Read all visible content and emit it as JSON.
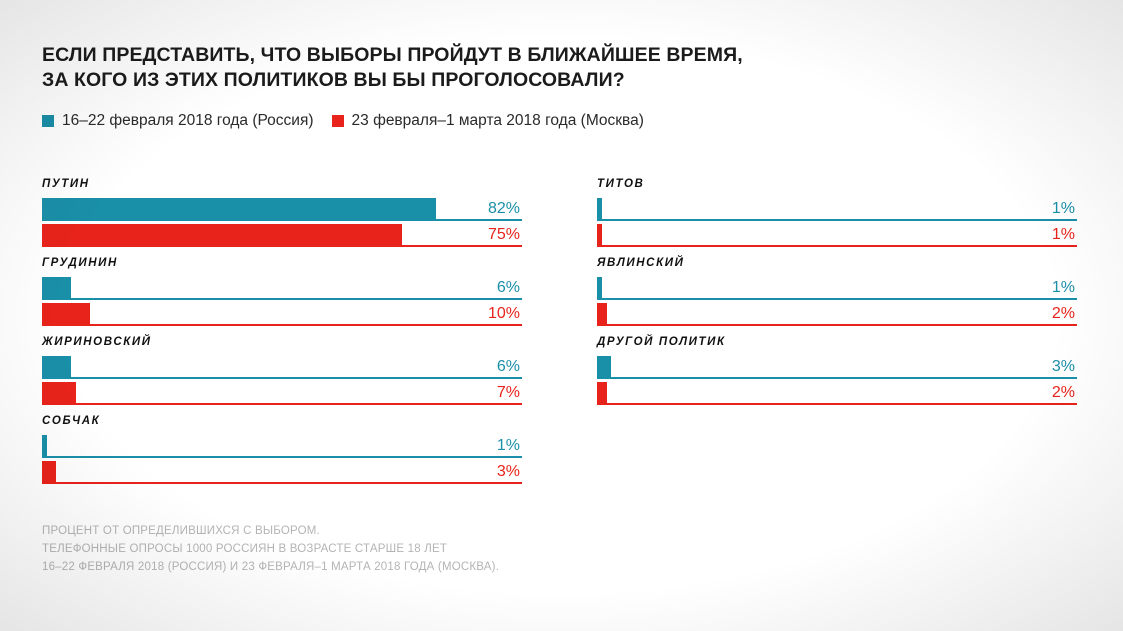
{
  "title": {
    "line1": "ЕСЛИ ПРЕДСТАВИТЬ, ЧТО ВЫБОРЫ ПРОЙДУТ В БЛИЖАЙШЕЕ ВРЕМЯ,",
    "line2": "ЗА КОГО ИЗ ЭТИХ ПОЛИТИКОВ ВЫ БЫ ПРОГОЛОСОВАЛИ?"
  },
  "legend": {
    "russia": "16–22 февраля 2018 года (Россия)",
    "moscow": "23 февраля–1 марта 2018 года (Москва)"
  },
  "colors": {
    "russia": "#1a8fa8",
    "moscow": "#e8231b"
  },
  "footnote": {
    "line1": "ПРОЦЕНТ ОТ ОПРЕДЕЛИВШИХСЯ С ВЫБОРОМ.",
    "line2": "ТЕЛЕФОННЫЕ ОПРОСЫ 1000 РОССИЯН В ВОЗРАСТЕ СТАРШЕ 18 ЛЕТ",
    "line3": "16–22 ФЕВРАЛЯ 2018 (РОССИЯ) И 23 ФЕВРАЛЯ–1 МАРТА 2018 ГОДА (МОСКВА)."
  },
  "chart_data": {
    "type": "bar",
    "orientation": "horizontal",
    "title": "ЕСЛИ ПРЕДСТАВИТЬ, ЧТО ВЫБОРЫ ПРОЙДУТ В БЛИЖАЙШЕЕ ВРЕМЯ, ЗА КОГО ИЗ ЭТИХ ПОЛИТИКОВ ВЫ БЫ ПРОГОЛОСОВАЛИ?",
    "xlim": [
      0,
      100
    ],
    "legend_position": "top-left",
    "grid": false,
    "categories": [
      "ПУТИН",
      "ГРУДИНИН",
      "ЖИРИНОВСКИЙ",
      "СОБЧАК",
      "ТИТОВ",
      "ЯВЛИНСКИЙ",
      "ДРУГОЙ ПОЛИТИК"
    ],
    "columns": [
      [
        "ПУТИН",
        "ГРУДИНИН",
        "ЖИРИНОВСКИЙ",
        "СОБЧАК"
      ],
      [
        "ТИТОВ",
        "ЯВЛИНСКИЙ",
        "ДРУГОЙ ПОЛИТИК"
      ]
    ],
    "series": [
      {
        "name": "16–22 февраля 2018 года (Россия)",
        "values": [
          82,
          6,
          6,
          1,
          1,
          1,
          3
        ],
        "labels": [
          "82%",
          "6%",
          "6%",
          "1%",
          "1%",
          "1%",
          "3%"
        ]
      },
      {
        "name": "23 февраля–1 марта 2018 года (Москва)",
        "values": [
          75,
          10,
          7,
          3,
          1,
          2,
          2
        ],
        "labels": [
          "75%",
          "10%",
          "7%",
          "3%",
          "1%",
          "2%",
          "2%"
        ]
      }
    ]
  }
}
